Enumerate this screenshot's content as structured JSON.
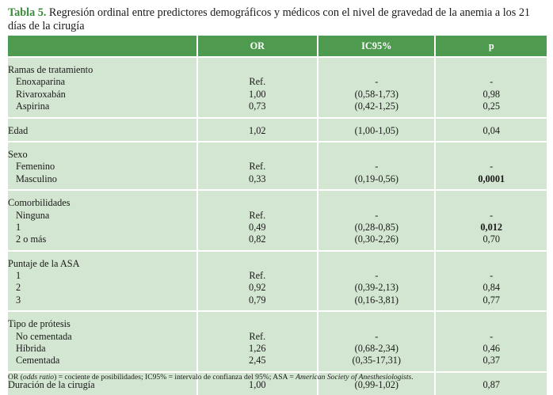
{
  "caption": {
    "label": "Tabla 5.",
    "text": " Regresión ordinal entre predictores demográficos y médicos con el nivel de gravedad de la anemia a los 21 días de la cirugía"
  },
  "headers": [
    "",
    "OR",
    "IC95%",
    "p"
  ],
  "groups": [
    {
      "title": "Ramas de tratamiento",
      "rows": [
        {
          "label": "Enoxaparina",
          "or": "Ref.",
          "ic": "-",
          "p": "-"
        },
        {
          "label": "Rivaroxabán",
          "or": "1,00",
          "ic": "(0,58-1,73)",
          "p": "0,98"
        },
        {
          "label": "Aspirina",
          "or": "0,73",
          "ic": "(0,42-1,25)",
          "p": "0,25"
        }
      ]
    },
    {
      "title": "Edad",
      "or": "1,02",
      "ic": "(1,00-1,05)",
      "p": "0,04",
      "rows": []
    },
    {
      "title": "Sexo",
      "rows": [
        {
          "label": "Femenino",
          "or": "Ref.",
          "ic": "-",
          "p": "-"
        },
        {
          "label": "Masculino",
          "or": "0,33",
          "ic": "(0,19-0,56)",
          "p": "0,0001",
          "bold": true
        }
      ]
    },
    {
      "title": "Comorbilidades",
      "rows": [
        {
          "label": "Ninguna",
          "or": "Ref.",
          "ic": "-",
          "p": "-"
        },
        {
          "label": "1",
          "or": "0,49",
          "ic": "(0,28-0,85)",
          "p": "0,012",
          "bold": true
        },
        {
          "label": "2 o más",
          "or": "0,82",
          "ic": "(0,30-2,26)",
          "p": "0,70"
        }
      ]
    },
    {
      "title": "Puntaje de la ASA",
      "rows": [
        {
          "label": "1",
          "or": "Ref.",
          "ic": "-",
          "p": "-"
        },
        {
          "label": "2",
          "or": "0,92",
          "ic": "(0,39-2,13)",
          "p": "0,84"
        },
        {
          "label": "3",
          "or": "0,79",
          "ic": "(0,16-3,81)",
          "p": "0,77"
        }
      ]
    },
    {
      "title": "Tipo de prótesis",
      "rows": [
        {
          "label": "No cementada",
          "or": "Ref.",
          "ic": "-",
          "p": "-"
        },
        {
          "label": "Híbrida",
          "or": "1,26",
          "ic": "(0,68-2,34)",
          "p": "0,46"
        },
        {
          "label": "Cementada",
          "or": "2,45",
          "ic": "(0,35-17,31)",
          "p": "0,37"
        }
      ]
    },
    {
      "title": "Duración de la cirugía",
      "or": "1,00",
      "ic": "(0,99-1,02)",
      "p": "0,87",
      "rows": []
    }
  ],
  "footnote": {
    "p1": "OR (",
    "p2": "odds ratio",
    "p3": ") = cociente de posibilidades; IC95% = intervalo de confianza del 95%; ASA = ",
    "p4": "American Society of Anesthesiologists",
    "p5": "."
  }
}
